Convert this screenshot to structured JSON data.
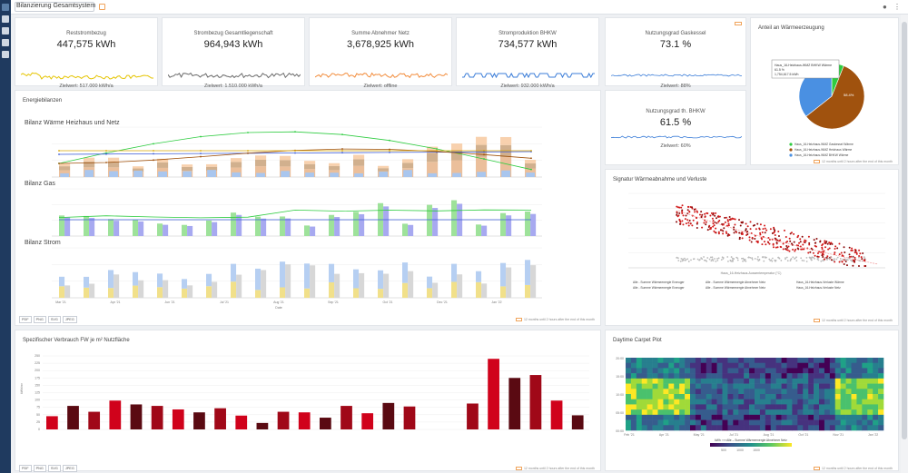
{
  "header": {
    "title": "Bilanzierung Gesamtsystem"
  },
  "kpis": [
    {
      "label": "Reststrombezug",
      "value": "447,575 kWh",
      "goal": "Zielwert: 517.000 kWh/a",
      "color": "#e5c400"
    },
    {
      "label": "Strombezug Gesamtliegenschaft",
      "value": "964,943 kWh",
      "goal": "Zielwert: 1.510.000 kWh/a",
      "color": "#6b6b6b"
    },
    {
      "label": "Summe Abnehmer Netz",
      "value": "3,678,925 kWh",
      "goal": "Zielwert: offline",
      "color": "#f28c3b"
    },
    {
      "label": "Stromproduktion BHKW",
      "value": "734,577 kWh",
      "goal": "Zielwert: 932.000 kWh/a",
      "color": "#3b7dd8"
    },
    {
      "label": "Nutzungsgrad Gaskessel",
      "value": "73.1 %",
      "goal": "Zielwert: 88%",
      "color": "#3b7dd8"
    },
    {
      "label": "Nutzungsgrad th. BHKW",
      "value": "61.5 %",
      "goal": "Zielwert: 60%",
      "color": "#3b7dd8"
    }
  ],
  "pie": {
    "title": "Anteil an Wärmeerzeugung",
    "colors": [
      "#2ecc40",
      "#a0520e",
      "#4a90e2"
    ],
    "tooltip_line1": "Haus_16-Heizhaus-WMZ BHKW Wärme",
    "tooltip_line2": "61.5 %",
    "tooltip_line3": "1,754,617.5 kWh",
    "label_big": "58.4%",
    "legend": [
      "Haus_16-Heizhaus-WMZ Gaskessel Wärme",
      "Haus_16-Heizhaus-WMZ Heizhaus Wärme",
      "Haus_16-Heizhaus-WMZ BHKW Wärme"
    ],
    "note": "12 months until 2 hours after the end of this month"
  },
  "energy": {
    "title": "Energiebilanzen",
    "sub1": "Bilanz Wärme Heizhaus und Netz",
    "sub2": "Bilanz Gas",
    "sub3": "Bilanz Strom",
    "months": [
      "Mar '21",
      "Apr '21",
      "Jun '21",
      "Jul '21",
      "Aug '21",
      "Sep '21",
      "Oct '21",
      "Dec '21",
      "Jan '22"
    ],
    "xlabel": "Date",
    "export": [
      "PDF",
      "PNG",
      "SVG",
      "JPEG"
    ],
    "note": "12 months until 2 hours after the end of this month"
  },
  "signature": {
    "title": "Signatur Wärmeabnahme und Verluste",
    "xlabel": "Haus_16-Heizhaus-Aussentemperatur (°C)",
    "legend": [
      "Alle - Summe Wärmeenergie Erzeuger",
      "Alle - Summe Wärmeenergie Abnehmer Netz",
      "Haus_16-Heizhaus-Verluste Wärme",
      "Alle - Summe Wärmeenergie Erzeuger",
      "Alle - Summe Wärmeenergie Abnehmer Netz",
      "Haus_16-Heizhaus-Verluste Netz"
    ],
    "note": "12 months until 2 hours after the end of this month"
  },
  "specific": {
    "title": "Spezifischer Verbrauch FW je m² Nutzfläche",
    "ylabel": "kWh/m²",
    "yticks": [
      "250",
      "225",
      "200",
      "175",
      "150",
      "125",
      "100",
      "75",
      "50",
      "25",
      "0"
    ],
    "export": [
      "PDF",
      "PNG",
      "SVG",
      "JPEG"
    ],
    "note": "12 months until 2 hours after the end of this month"
  },
  "carpet": {
    "title": "Daytime Carpet Plot",
    "yticks": [
      "20:00",
      "15:00",
      "10:00",
      "05:00",
      "00:00"
    ],
    "xticks": [
      "Feb '21",
      "Apr '21",
      "May '21",
      "Jul '21",
      "Aug '21",
      "Oct '21",
      "Nov '21",
      "Jan '22"
    ],
    "colorbar_label": "kWh ⟹ Alle – Summe Wärmeenergie Abnehmer Netz",
    "colorbar_ticks": [
      "500",
      "1000",
      "1500"
    ],
    "note": "12 months until 2 hours after the end of this month"
  }
}
